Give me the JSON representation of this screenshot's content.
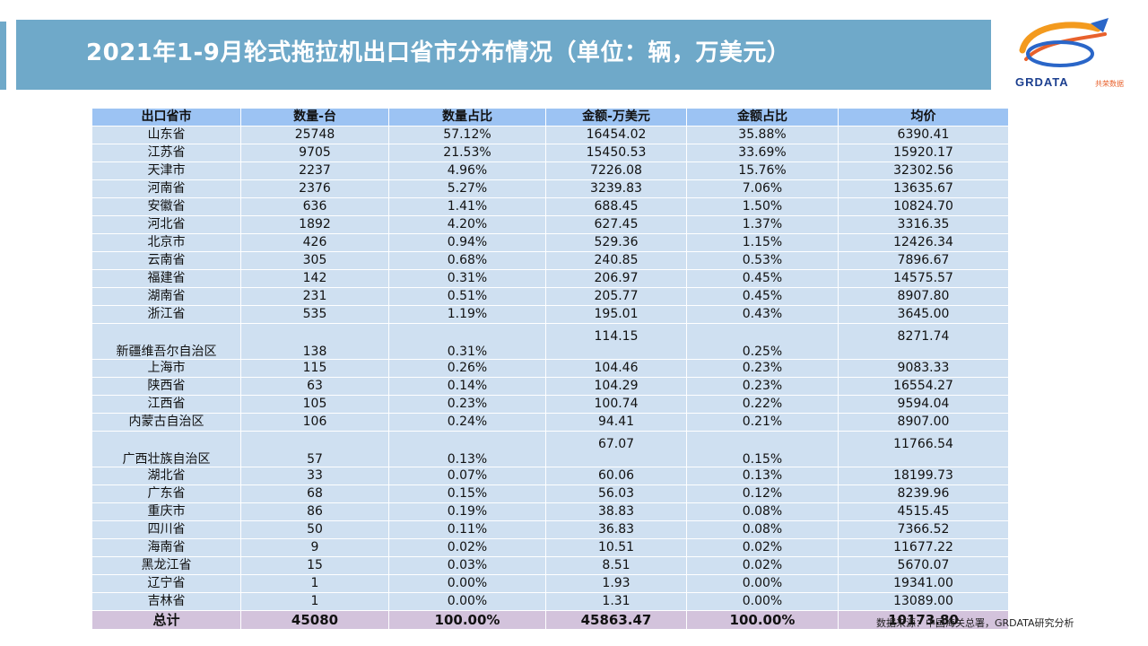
{
  "title": "2021年1-9月轮式拖拉机出口省市分布情况（单位：辆，万美元）",
  "logo": {
    "name": "GRDATA",
    "sub": "共荣数据"
  },
  "colors": {
    "title_bar": "#6fa9c9",
    "header_row": "#9cc3f3",
    "body_row": "#cfe0f1",
    "total_row": "#d3c3dc"
  },
  "table": {
    "headers": [
      "出口省市",
      "数量-台",
      "数量占比",
      "金额-万美元",
      "金额占比",
      "均价"
    ],
    "rows": [
      [
        "山东省",
        "25748",
        "57.12%",
        "16454.02",
        "35.88%",
        "6390.41"
      ],
      [
        "江苏省",
        "9705",
        "21.53%",
        "15450.53",
        "33.69%",
        "15920.17"
      ],
      [
        "天津市",
        "2237",
        "4.96%",
        "7226.08",
        "15.76%",
        "32302.56"
      ],
      [
        "河南省",
        "2376",
        "5.27%",
        "3239.83",
        "7.06%",
        "13635.67"
      ],
      [
        "安徽省",
        "636",
        "1.41%",
        "688.45",
        "1.50%",
        "10824.70"
      ],
      [
        "河北省",
        "1892",
        "4.20%",
        "627.45",
        "1.37%",
        "3316.35"
      ],
      [
        "北京市",
        "426",
        "0.94%",
        "529.36",
        "1.15%",
        "12426.34"
      ],
      [
        "云南省",
        "305",
        "0.68%",
        "240.85",
        "0.53%",
        "7896.67"
      ],
      [
        "福建省",
        "142",
        "0.31%",
        "206.97",
        "0.45%",
        "14575.57"
      ],
      [
        "湖南省",
        "231",
        "0.51%",
        "205.77",
        "0.45%",
        "8907.80"
      ],
      [
        "浙江省",
        "535",
        "1.19%",
        "195.01",
        "0.43%",
        "3645.00"
      ],
      [
        "新疆维吾尔自治区",
        "138",
        "0.31%",
        "114.15",
        "0.25%",
        "8271.74"
      ],
      [
        "上海市",
        "115",
        "0.26%",
        "104.46",
        "0.23%",
        "9083.33"
      ],
      [
        "陕西省",
        "63",
        "0.14%",
        "104.29",
        "0.23%",
        "16554.27"
      ],
      [
        "江西省",
        "105",
        "0.23%",
        "100.74",
        "0.22%",
        "9594.04"
      ],
      [
        "内蒙古自治区",
        "106",
        "0.24%",
        "94.41",
        "0.21%",
        "8907.00"
      ],
      [
        "广西壮族自治区",
        "57",
        "0.13%",
        "67.07",
        "0.15%",
        "11766.54"
      ],
      [
        "湖北省",
        "33",
        "0.07%",
        "60.06",
        "0.13%",
        "18199.73"
      ],
      [
        "广东省",
        "68",
        "0.15%",
        "56.03",
        "0.12%",
        "8239.96"
      ],
      [
        "重庆市",
        "86",
        "0.19%",
        "38.83",
        "0.08%",
        "4515.45"
      ],
      [
        "四川省",
        "50",
        "0.11%",
        "36.83",
        "0.08%",
        "7366.52"
      ],
      [
        "海南省",
        "9",
        "0.02%",
        "10.51",
        "0.02%",
        "11677.22"
      ],
      [
        "黑龙江省",
        "15",
        "0.03%",
        "8.51",
        "0.02%",
        "5670.07"
      ],
      [
        "辽宁省",
        "1",
        "0.00%",
        "1.93",
        "0.00%",
        "19341.00"
      ],
      [
        "吉林省",
        "1",
        "0.00%",
        "1.31",
        "0.00%",
        "13089.00"
      ]
    ],
    "total": [
      "总计",
      "45080",
      "100.00%",
      "45863.47",
      "100.00%",
      "10173.80"
    ]
  },
  "source": "数据来源：中国海关总署，GRDATA研究分析"
}
